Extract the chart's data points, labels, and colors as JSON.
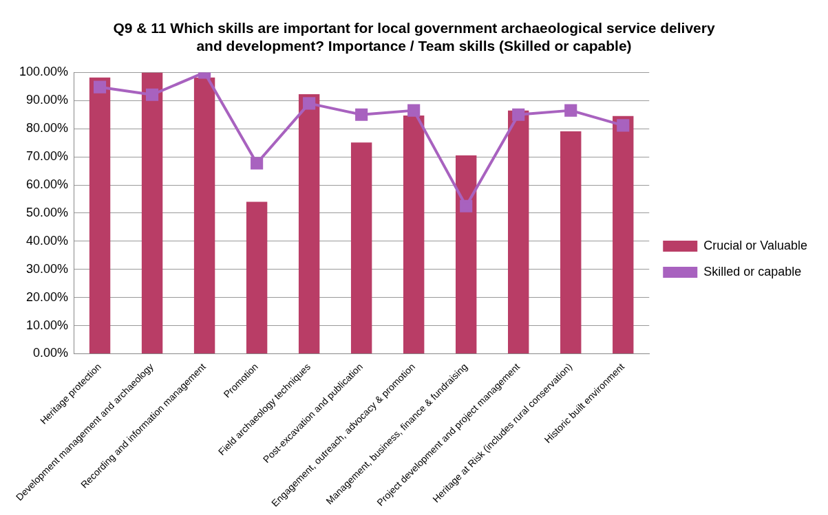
{
  "chart_data": {
    "type": "bar",
    "title": "Q9 & 11 Which skills are important for local government archaeological service delivery and development? Importance / Team skills (Skilled or capable)",
    "categories": [
      "Heritage protection",
      "Development management and archaeology",
      "Recording and information management",
      "Promotion",
      "Field archaeology techniques",
      "Post-excavation and publication",
      "Engagement, outreach, advocacy & promotion",
      "Management, business, finance & fundraising",
      "Project development and project management",
      "Heritage at Risk (includes rural conservation)",
      "Historic built environment"
    ],
    "series": [
      {
        "name": "Crucial or Valuable",
        "color": "#b93d66",
        "values": [
          98.2,
          100,
          98.2,
          54,
          92.3,
          75.1,
          84.7,
          70.5,
          86.5,
          79.1,
          84.5
        ]
      },
      {
        "name": "Skilled or capable",
        "type": "line",
        "color": "#a862bf",
        "values": [
          94.8,
          92.1,
          100,
          67.7,
          89,
          85,
          86.5,
          52.5,
          85,
          86.5,
          81.2
        ]
      }
    ],
    "ylim": [
      0,
      100
    ],
    "yticks": [
      {
        "value": 0,
        "label": "0.00%"
      },
      {
        "value": 10,
        "label": "10.00%"
      },
      {
        "value": 20,
        "label": "20.00%"
      },
      {
        "value": 30,
        "label": "30.00%"
      },
      {
        "value": 40,
        "label": "40.00%"
      },
      {
        "value": 50,
        "label": "50.00%"
      },
      {
        "value": 60,
        "label": "60.00%"
      },
      {
        "value": 70,
        "label": "70.00%"
      },
      {
        "value": 80,
        "label": "80.00%"
      },
      {
        "value": 90,
        "label": "90.00%"
      },
      {
        "value": 100,
        "label": "100.00%"
      }
    ],
    "grid": "y",
    "legend": "right",
    "marker": "square",
    "line_style": "solid"
  }
}
